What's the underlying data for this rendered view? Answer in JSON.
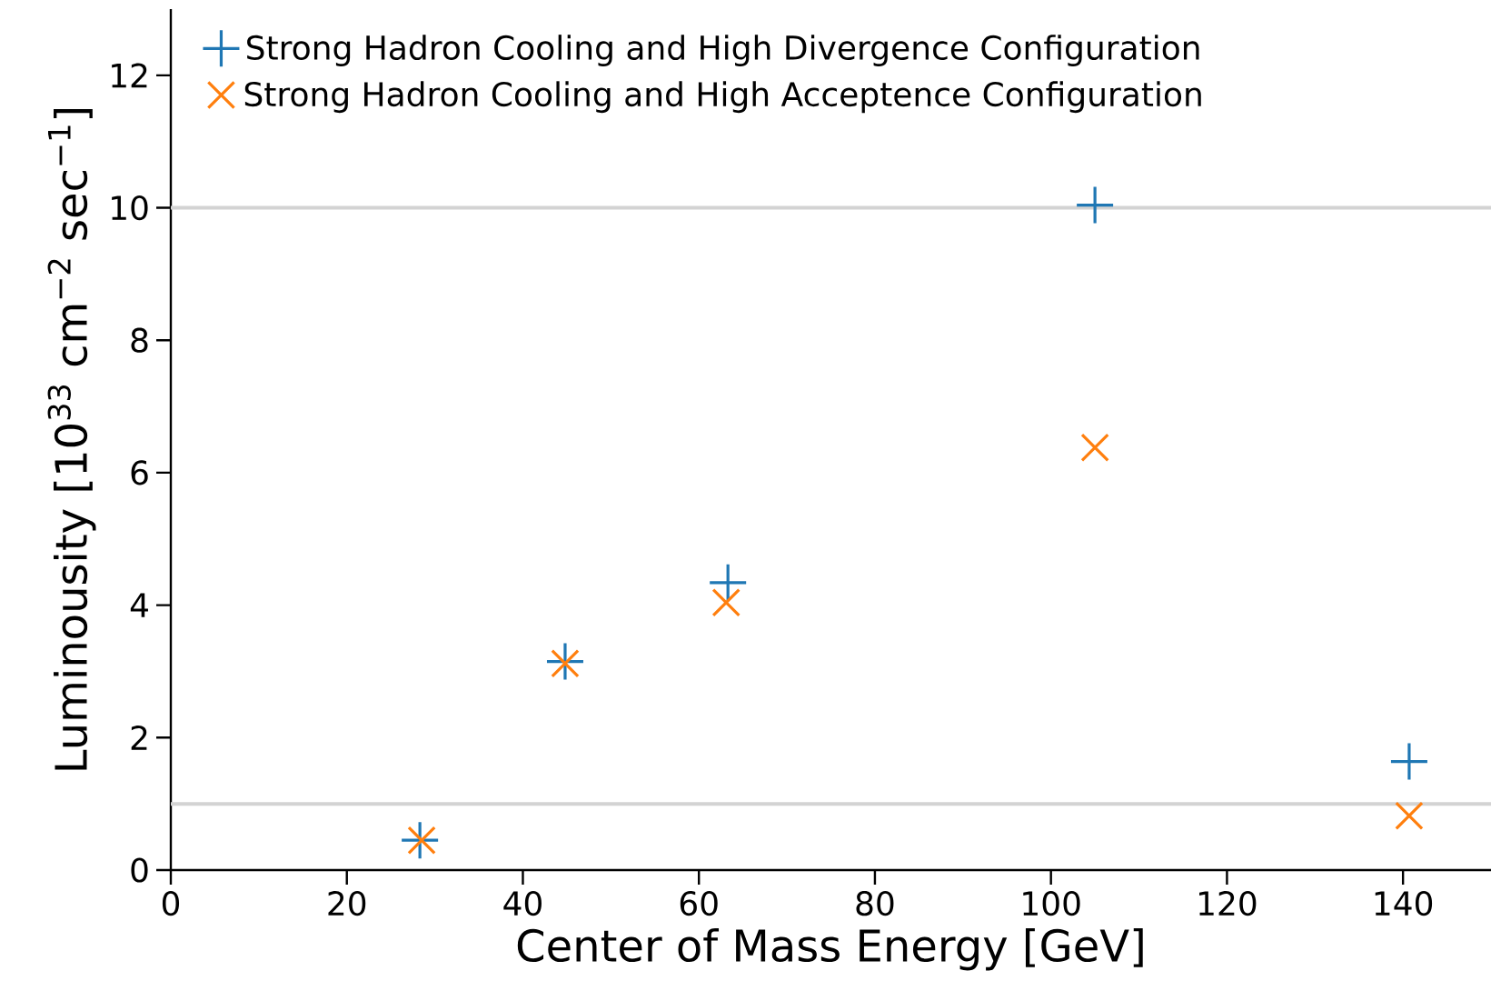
{
  "chart_data": {
    "type": "scatter",
    "xlabel": "Center of Mass Energy [GeV]",
    "ylabel": "Luminousity [10$^{33}$ cm$^{−2}$ sec$^{−1}$]",
    "xlim": [
      0,
      150
    ],
    "ylim": [
      0,
      13
    ],
    "xticks": [
      0,
      20,
      40,
      60,
      80,
      100,
      120,
      140
    ],
    "yticks": [
      0,
      2,
      4,
      6,
      8,
      10,
      12
    ],
    "grid": false,
    "legend": "top left",
    "ref_lines": [
      {
        "axis": "y",
        "value": 10,
        "color": "#d3d3d3"
      },
      {
        "axis": "y",
        "value": 1,
        "color": "#d3d3d3"
      }
    ],
    "series": [
      {
        "name": "Strong Hadron Cooling and High Divergence Configuration",
        "color": "#1f77b4",
        "marker": "plus",
        "x": [
          28.3,
          44.8,
          63.3,
          105,
          140.7
        ],
        "values": [
          0.45,
          3.15,
          4.34,
          10.04,
          1.64
        ]
      },
      {
        "name": "Strong Hadron Cooling and High Acceptence Configuration",
        "color": "#ff7f0e",
        "marker": "cross",
        "x": [
          28.5,
          44.8,
          63.1,
          105,
          140.7
        ],
        "values": [
          0.45,
          3.12,
          4.04,
          6.38,
          0.82
        ]
      }
    ]
  }
}
